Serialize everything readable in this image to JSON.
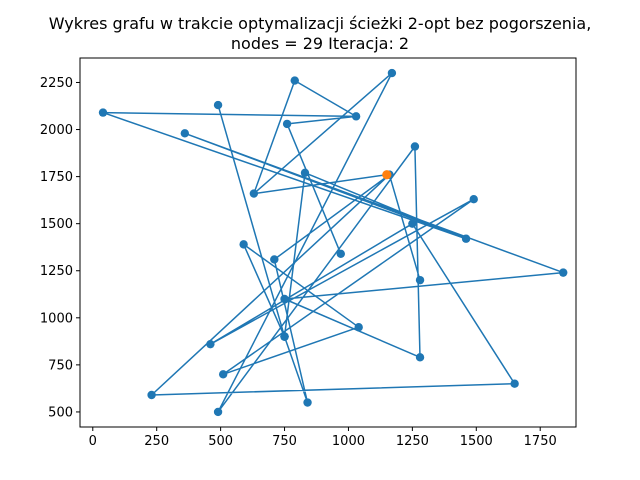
{
  "chart_data": {
    "type": "line",
    "title_line1": "Wykres grafu w trakcie optymalizacji ścieżki 2-opt bez pogorszenia,",
    "title_line2": "nodes = 29 Iteracja: 2",
    "xlim": [
      -50,
      1890
    ],
    "ylim": [
      420,
      2380
    ],
    "x_ticks": [
      0,
      250,
      500,
      750,
      1000,
      1250,
      1500,
      1750
    ],
    "y_ticks": [
      500,
      750,
      1000,
      1250,
      1500,
      1750,
      2000,
      2250
    ],
    "path": [
      {
        "x": 1150,
        "y": 1760
      },
      {
        "x": 630,
        "y": 1660
      },
      {
        "x": 1170,
        "y": 2300
      },
      {
        "x": 490,
        "y": 500
      },
      {
        "x": 1260,
        "y": 1910
      },
      {
        "x": 1280,
        "y": 790
      },
      {
        "x": 750,
        "y": 1100
      },
      {
        "x": 1840,
        "y": 1240
      },
      {
        "x": 360,
        "y": 1980
      },
      {
        "x": 1460,
        "y": 1420
      },
      {
        "x": 830,
        "y": 1770
      },
      {
        "x": 750,
        "y": 900
      },
      {
        "x": 490,
        "y": 2130
      },
      {
        "x": 750,
        "y": 900
      },
      {
        "x": 590,
        "y": 1390
      },
      {
        "x": 1040,
        "y": 950
      },
      {
        "x": 510,
        "y": 700
      },
      {
        "x": 1490,
        "y": 1630
      },
      {
        "x": 460,
        "y": 860
      },
      {
        "x": 1250,
        "y": 1500
      },
      {
        "x": 1650,
        "y": 650
      },
      {
        "x": 230,
        "y": 590
      },
      {
        "x": 1160,
        "y": 1760
      },
      {
        "x": 1280,
        "y": 1200
      },
      {
        "x": 1160,
        "y": 1760
      },
      {
        "x": 710,
        "y": 1310
      },
      {
        "x": 840,
        "y": 550
      },
      {
        "x": 750,
        "y": 900
      }
    ],
    "extra_segments": [
      [
        {
          "x": 40,
          "y": 2090
        },
        {
          "x": 1030,
          "y": 2070
        }
      ],
      [
        {
          "x": 40,
          "y": 2090
        },
        {
          "x": 1460,
          "y": 1420
        }
      ],
      [
        {
          "x": 790,
          "y": 2260
        },
        {
          "x": 630,
          "y": 1660
        }
      ],
      [
        {
          "x": 790,
          "y": 2260
        },
        {
          "x": 1030,
          "y": 2070
        }
      ],
      [
        {
          "x": 760,
          "y": 2030
        },
        {
          "x": 970,
          "y": 1340
        }
      ],
      [
        {
          "x": 760,
          "y": 2030
        },
        {
          "x": 1030,
          "y": 2070
        }
      ]
    ],
    "extra_points": [
      {
        "x": 40,
        "y": 2090
      },
      {
        "x": 1030,
        "y": 2070
      },
      {
        "x": 790,
        "y": 2260
      },
      {
        "x": 760,
        "y": 2030
      },
      {
        "x": 970,
        "y": 1340
      }
    ],
    "highlight_point": {
      "x": 1150,
      "y": 1760
    },
    "colors": {
      "line": "#1f77b4",
      "marker": "#1f77b4",
      "highlight": "#ff7f0e"
    }
  }
}
